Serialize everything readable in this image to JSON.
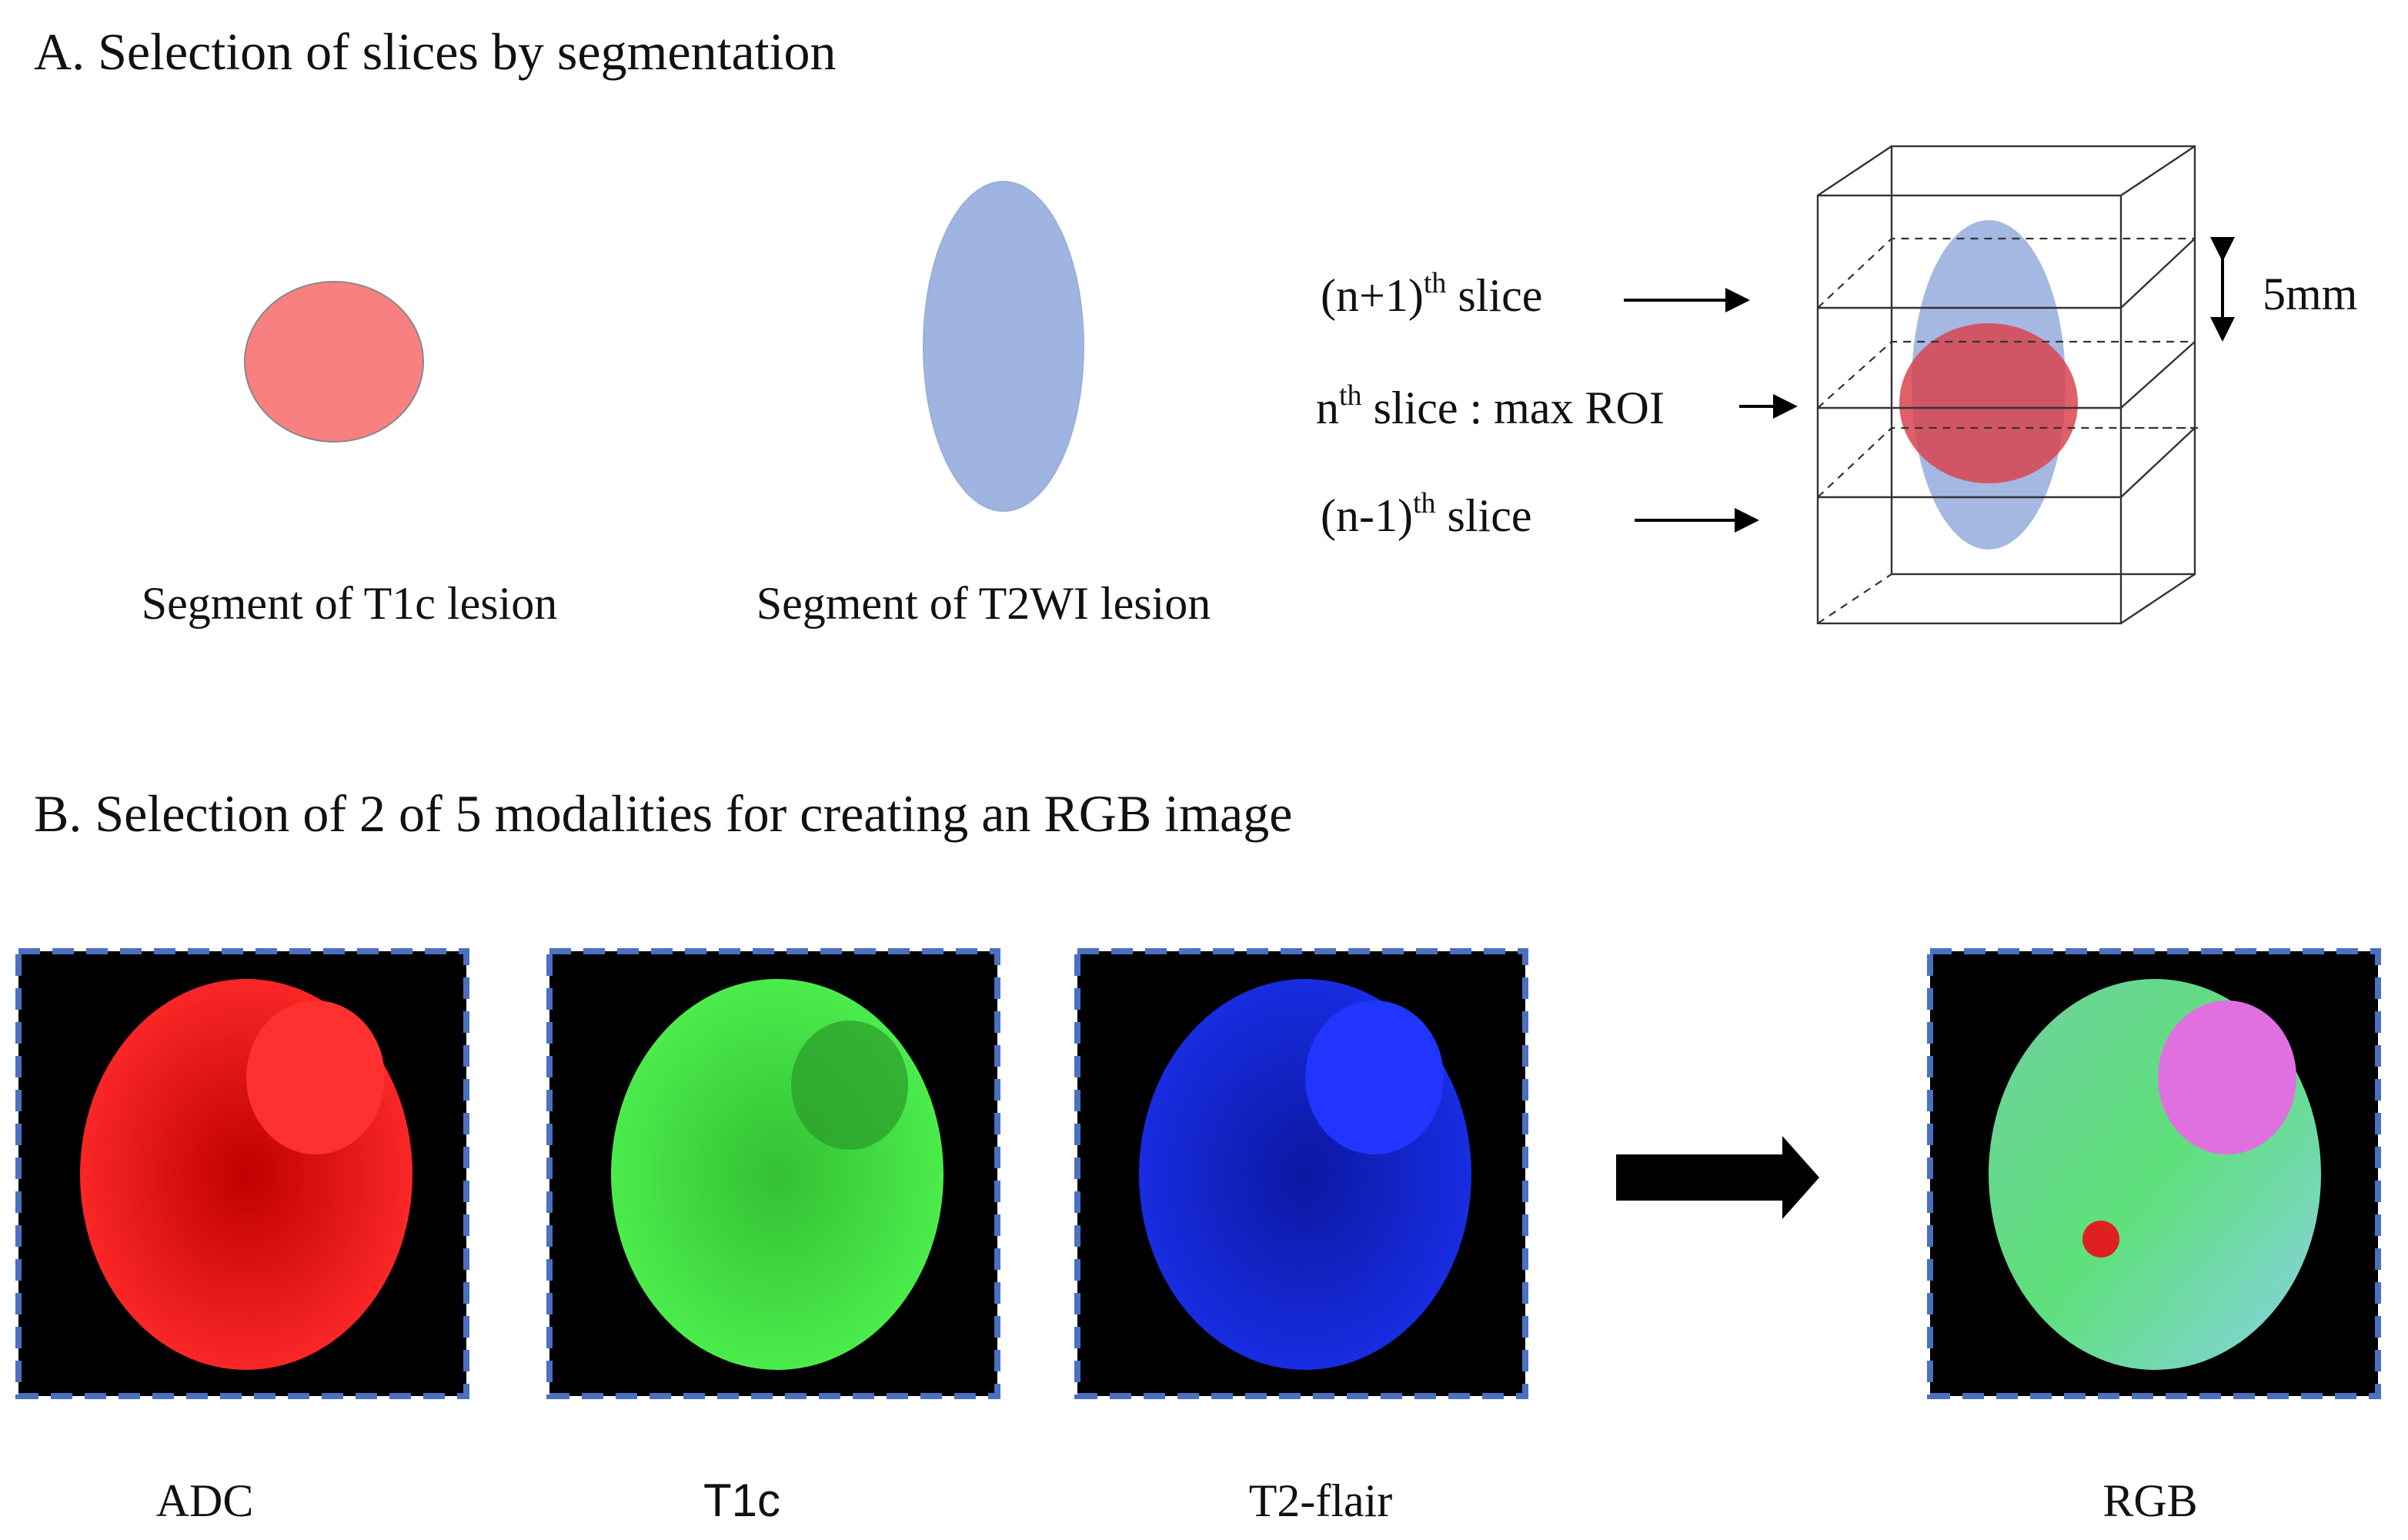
{
  "section_a": {
    "title": "A. Selection of slices by segmentation",
    "segments": [
      "Segment of T1c lesion",
      "Segment of T2WI lesion"
    ],
    "slices": [
      {
        "prefix": "(n+1)",
        "sup": "th",
        "suffix": " slice"
      },
      {
        "prefix": "n",
        "sup": "th",
        "suffix": " slice : max ROI"
      },
      {
        "prefix": "(n-1)",
        "sup": "th",
        "suffix": " slice"
      }
    ],
    "thickness": "5mm"
  },
  "section_b": {
    "title": "B. Selection of 2 of 5 modalities for creating an RGB image",
    "images": [
      "ADC",
      "T1c",
      "T2-flair",
      "RGB"
    ]
  }
}
